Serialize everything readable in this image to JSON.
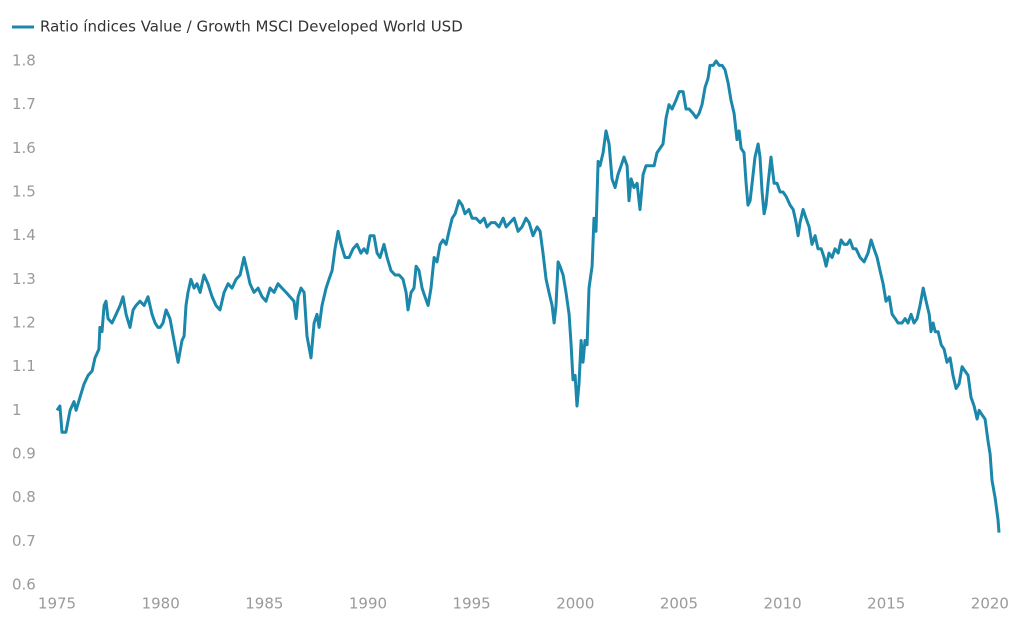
{
  "chart_data": {
    "type": "line",
    "x": [
      1975.0,
      1975.14,
      1975.24,
      1975.43,
      1975.63,
      1975.82,
      1975.92,
      1976.11,
      1976.3,
      1976.5,
      1976.69,
      1976.83,
      1977.02,
      1977.07,
      1977.17,
      1977.27,
      1977.36,
      1977.46,
      1977.65,
      1977.85,
      1978.04,
      1978.18,
      1978.33,
      1978.52,
      1978.67,
      1978.81,
      1979.0,
      1979.2,
      1979.39,
      1979.58,
      1979.73,
      1979.87,
      1979.97,
      1980.11,
      1980.26,
      1980.45,
      1980.64,
      1980.84,
      1981.03,
      1981.13,
      1981.22,
      1981.32,
      1981.46,
      1981.61,
      1981.75,
      1981.9,
      1982.09,
      1982.28,
      1982.48,
      1982.67,
      1982.86,
      1983.06,
      1983.25,
      1983.44,
      1983.64,
      1983.83,
      1984.02,
      1984.17,
      1984.31,
      1984.5,
      1984.7,
      1984.89,
      1985.08,
      1985.28,
      1985.47,
      1985.66,
      1985.85,
      1986.05,
      1986.24,
      1986.43,
      1986.53,
      1986.63,
      1986.77,
      1986.92,
      1987.06,
      1987.25,
      1987.4,
      1987.54,
      1987.64,
      1987.78,
      1987.98,
      1988.12,
      1988.27,
      1988.41,
      1988.56,
      1988.7,
      1988.89,
      1989.09,
      1989.28,
      1989.47,
      1989.66,
      1989.81,
      1989.95,
      1990.1,
      1990.29,
      1990.44,
      1990.58,
      1990.77,
      1990.92,
      1991.11,
      1991.31,
      1991.5,
      1991.69,
      1991.84,
      1991.93,
      1992.08,
      1992.22,
      1992.32,
      1992.46,
      1992.61,
      1992.75,
      1992.9,
      1993.04,
      1993.19,
      1993.33,
      1993.48,
      1993.62,
      1993.77,
      1993.91,
      1994.06,
      1994.2,
      1994.39,
      1994.54,
      1994.68,
      1994.87,
      1995.02,
      1995.21,
      1995.41,
      1995.6,
      1995.74,
      1995.94,
      1996.13,
      1996.32,
      1996.52,
      1996.66,
      1996.85,
      1997.05,
      1997.24,
      1997.43,
      1997.62,
      1997.77,
      1997.96,
      1998.16,
      1998.3,
      1998.44,
      1998.59,
      1998.73,
      1998.88,
      1998.98,
      1999.07,
      1999.17,
      1999.26,
      1999.41,
      1999.55,
      1999.7,
      1999.8,
      1999.89,
      1999.99,
      2000.08,
      2000.18,
      2000.28,
      2000.37,
      2000.47,
      2000.57,
      2000.66,
      2000.81,
      2000.9,
      2001.0,
      2001.1,
      2001.19,
      2001.34,
      2001.48,
      2001.63,
      2001.77,
      2001.92,
      2002.06,
      2002.21,
      2002.35,
      2002.5,
      2002.59,
      2002.69,
      2002.83,
      2002.98,
      2003.12,
      2003.27,
      2003.41,
      2003.61,
      2003.8,
      2003.94,
      2004.09,
      2004.23,
      2004.38,
      2004.52,
      2004.67,
      2004.86,
      2005.01,
      2005.2,
      2005.34,
      2005.49,
      2005.68,
      2005.83,
      2005.97,
      2006.11,
      2006.26,
      2006.4,
      2006.5,
      2006.65,
      2006.79,
      2006.94,
      2007.08,
      2007.22,
      2007.37,
      2007.51,
      2007.66,
      2007.8,
      2007.9,
      2008.0,
      2008.14,
      2008.24,
      2008.33,
      2008.43,
      2008.53,
      2008.67,
      2008.82,
      2008.91,
      2009.01,
      2009.11,
      2009.2,
      2009.3,
      2009.44,
      2009.59,
      2009.73,
      2009.88,
      2010.02,
      2010.17,
      2010.36,
      2010.51,
      2010.65,
      2010.75,
      2010.84,
      2010.99,
      2011.13,
      2011.28,
      2011.42,
      2011.57,
      2011.71,
      2011.86,
      2012.0,
      2012.1,
      2012.24,
      2012.39,
      2012.53,
      2012.68,
      2012.82,
      2012.97,
      2013.11,
      2013.25,
      2013.4,
      2013.54,
      2013.74,
      2013.93,
      2014.12,
      2014.27,
      2014.41,
      2014.56,
      2014.7,
      2014.85,
      2014.99,
      2015.14,
      2015.28,
      2015.43,
      2015.57,
      2015.76,
      2015.91,
      2016.05,
      2016.2,
      2016.34,
      2016.49,
      2016.63,
      2016.78,
      2016.92,
      2017.07,
      2017.16,
      2017.26,
      2017.36,
      2017.5,
      2017.65,
      2017.79,
      2017.93,
      2018.08,
      2018.22,
      2018.37,
      2018.51,
      2018.66,
      2018.8,
      2018.95,
      2019.09,
      2019.24,
      2019.38,
      2019.48,
      2019.62,
      2019.77,
      2019.91,
      2020.01,
      2020.1,
      2020.25,
      2020.39,
      2020.44
    ],
    "series": [
      {
        "name": "Ratio índices Value / Growth MSCI Developed World USD",
        "color": "#1b87ab",
        "values": [
          1.0,
          1.01,
          0.95,
          0.95,
          1.0,
          1.02,
          1.0,
          1.03,
          1.06,
          1.08,
          1.09,
          1.12,
          1.14,
          1.19,
          1.18,
          1.24,
          1.25,
          1.21,
          1.2,
          1.22,
          1.24,
          1.26,
          1.22,
          1.19,
          1.23,
          1.24,
          1.25,
          1.24,
          1.26,
          1.22,
          1.2,
          1.19,
          1.19,
          1.2,
          1.23,
          1.21,
          1.16,
          1.11,
          1.16,
          1.17,
          1.24,
          1.27,
          1.3,
          1.28,
          1.29,
          1.27,
          1.31,
          1.29,
          1.26,
          1.24,
          1.23,
          1.27,
          1.29,
          1.28,
          1.3,
          1.31,
          1.35,
          1.32,
          1.29,
          1.27,
          1.28,
          1.26,
          1.25,
          1.28,
          1.27,
          1.29,
          1.28,
          1.27,
          1.26,
          1.25,
          1.21,
          1.26,
          1.28,
          1.27,
          1.17,
          1.12,
          1.2,
          1.22,
          1.19,
          1.24,
          1.28,
          1.3,
          1.32,
          1.37,
          1.41,
          1.38,
          1.35,
          1.35,
          1.37,
          1.38,
          1.36,
          1.37,
          1.36,
          1.4,
          1.4,
          1.36,
          1.35,
          1.38,
          1.35,
          1.32,
          1.31,
          1.31,
          1.3,
          1.27,
          1.23,
          1.27,
          1.28,
          1.33,
          1.32,
          1.28,
          1.26,
          1.24,
          1.28,
          1.35,
          1.34,
          1.38,
          1.39,
          1.38,
          1.41,
          1.44,
          1.45,
          1.48,
          1.47,
          1.45,
          1.46,
          1.44,
          1.44,
          1.43,
          1.44,
          1.42,
          1.43,
          1.43,
          1.42,
          1.44,
          1.42,
          1.43,
          1.44,
          1.41,
          1.42,
          1.44,
          1.43,
          1.4,
          1.42,
          1.41,
          1.36,
          1.3,
          1.27,
          1.24,
          1.2,
          1.24,
          1.34,
          1.33,
          1.31,
          1.27,
          1.22,
          1.15,
          1.07,
          1.08,
          1.01,
          1.06,
          1.16,
          1.11,
          1.16,
          1.15,
          1.28,
          1.33,
          1.44,
          1.41,
          1.57,
          1.56,
          1.59,
          1.64,
          1.61,
          1.53,
          1.51,
          1.54,
          1.56,
          1.58,
          1.56,
          1.48,
          1.53,
          1.51,
          1.52,
          1.46,
          1.54,
          1.56,
          1.56,
          1.56,
          1.59,
          1.6,
          1.61,
          1.67,
          1.7,
          1.69,
          1.71,
          1.73,
          1.73,
          1.69,
          1.69,
          1.68,
          1.67,
          1.68,
          1.7,
          1.74,
          1.76,
          1.79,
          1.79,
          1.8,
          1.79,
          1.79,
          1.78,
          1.75,
          1.71,
          1.68,
          1.62,
          1.64,
          1.6,
          1.59,
          1.52,
          1.47,
          1.48,
          1.52,
          1.58,
          1.61,
          1.58,
          1.5,
          1.45,
          1.47,
          1.52,
          1.58,
          1.52,
          1.52,
          1.5,
          1.5,
          1.49,
          1.47,
          1.46,
          1.43,
          1.4,
          1.43,
          1.46,
          1.44,
          1.42,
          1.38,
          1.4,
          1.37,
          1.37,
          1.35,
          1.33,
          1.36,
          1.35,
          1.37,
          1.36,
          1.39,
          1.38,
          1.38,
          1.39,
          1.37,
          1.37,
          1.35,
          1.34,
          1.36,
          1.39,
          1.37,
          1.35,
          1.32,
          1.29,
          1.25,
          1.26,
          1.22,
          1.21,
          1.2,
          1.2,
          1.21,
          1.2,
          1.22,
          1.2,
          1.21,
          1.24,
          1.28,
          1.25,
          1.22,
          1.18,
          1.2,
          1.18,
          1.18,
          1.15,
          1.14,
          1.11,
          1.12,
          1.08,
          1.05,
          1.06,
          1.1,
          1.09,
          1.08,
          1.03,
          1.01,
          0.98,
          1.0,
          0.99,
          0.98,
          0.93,
          0.9,
          0.84,
          0.8,
          0.75,
          0.72
        ]
      }
    ],
    "xlim": [
      1974,
      2021.5
    ],
    "xticks": [
      1975,
      1980,
      1985,
      1990,
      1995,
      2000,
      2005,
      2010,
      2015,
      2020
    ],
    "ylim": [
      0.6,
      1.8
    ],
    "yticks": [
      0.6,
      0.7,
      0.8,
      0.9,
      1,
      1.1,
      1.2,
      1.3,
      1.4,
      1.5,
      1.6,
      1.7,
      1.8
    ],
    "grid": false,
    "legend": "top-left"
  }
}
